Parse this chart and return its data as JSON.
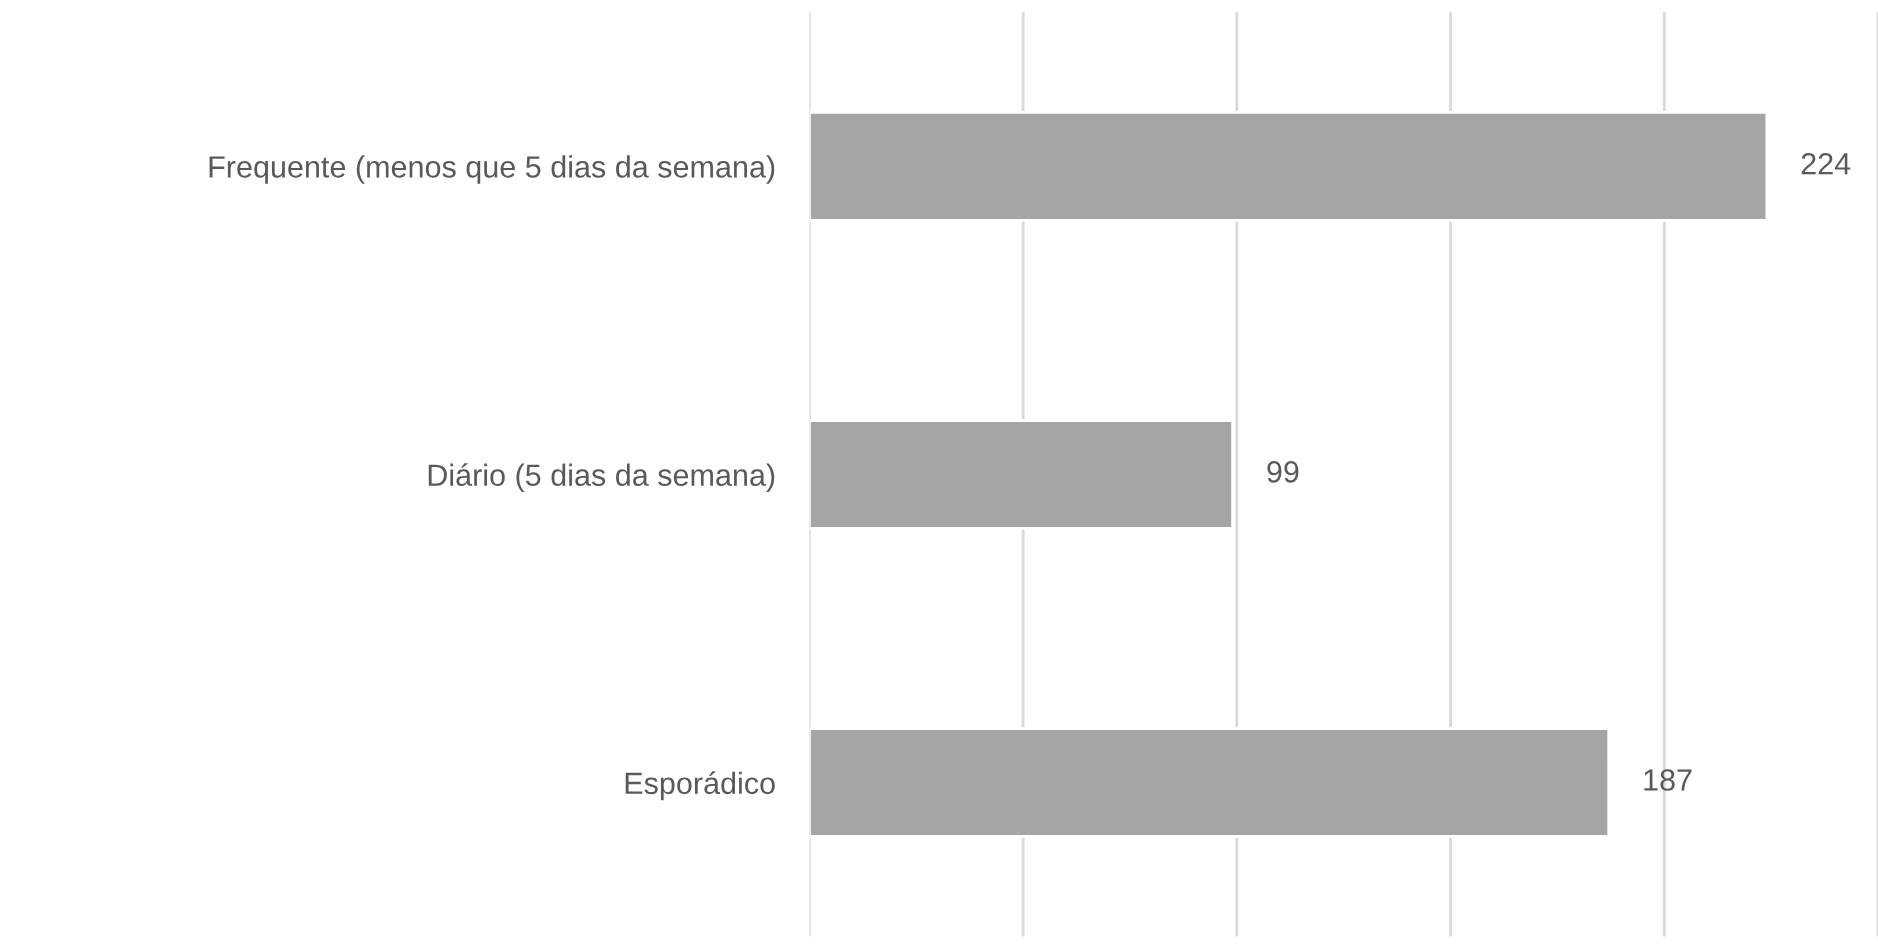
{
  "chart_data": {
    "type": "bar",
    "orientation": "horizontal",
    "categories": [
      "Frequente (menos que 5 dias da semana)",
      "Diário (5 dias da semana)",
      "Esporádico"
    ],
    "values": [
      224,
      99,
      187
    ],
    "color": "#a5a5a5",
    "data_labels": true,
    "xlim": [
      0,
      250
    ],
    "xticks": [
      {
        "value": 0,
        "label": null
      },
      {
        "value": 50,
        "label": null
      },
      {
        "value": 100,
        "label": null
      },
      {
        "value": 150,
        "label": null
      },
      {
        "value": 200,
        "label": null
      },
      {
        "value": 250,
        "label": null
      }
    ],
    "grid": "x",
    "legend": false
  }
}
